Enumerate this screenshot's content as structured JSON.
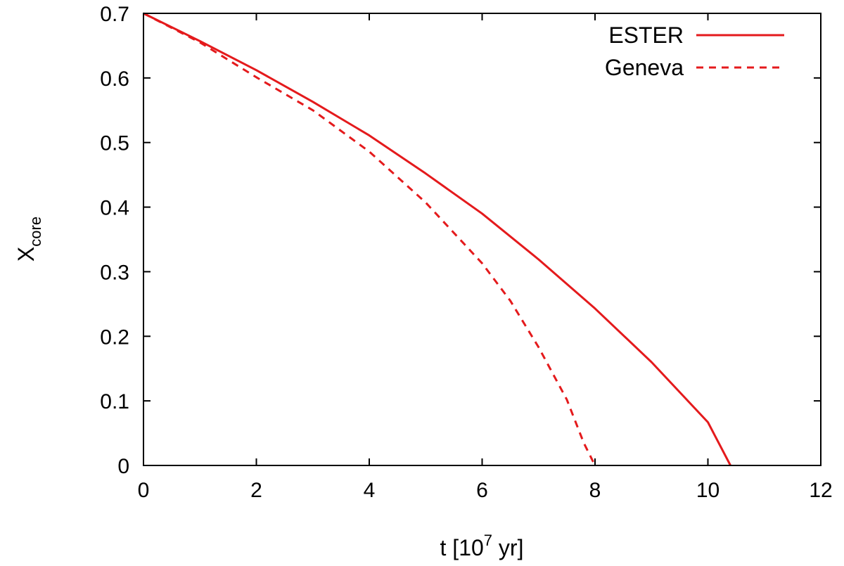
{
  "chart_data": {
    "type": "line",
    "title": "",
    "xlabel": {
      "main": "t [10",
      "superscript": "7",
      "tail": " yr]"
    },
    "ylabel": {
      "main": "X",
      "subscript": "core"
    },
    "xlim": [
      0,
      12
    ],
    "ylim": [
      0,
      0.7
    ],
    "xticks": [
      0,
      2,
      4,
      6,
      8,
      10,
      12
    ],
    "yticks": [
      0,
      0.1,
      0.2,
      0.3,
      0.4,
      0.5,
      0.6,
      0.7
    ],
    "xtick_labels": [
      "0",
      "2",
      "4",
      "6",
      "8",
      "10",
      "12"
    ],
    "ytick_labels": [
      "0",
      "0.1",
      "0.2",
      "0.3",
      "0.4",
      "0.5",
      "0.6",
      "0.7"
    ],
    "grid": false,
    "legend_position": "top-right",
    "series_color": "#e41a1c",
    "series": [
      {
        "name": "ESTER",
        "style": "solid",
        "x": [
          0,
          1,
          2,
          3,
          4,
          5,
          6,
          7,
          8,
          9,
          10,
          10.4
        ],
        "y": [
          0.7,
          0.657,
          0.612,
          0.563,
          0.511,
          0.452,
          0.39,
          0.319,
          0.243,
          0.16,
          0.067,
          0.0
        ]
      },
      {
        "name": "Geneva",
        "style": "dashed",
        "x": [
          0,
          1,
          2,
          3,
          4,
          5,
          6,
          6.5,
          7,
          7.5,
          7.8,
          8.0
        ],
        "y": [
          0.7,
          0.655,
          0.601,
          0.55,
          0.486,
          0.407,
          0.313,
          0.255,
          0.183,
          0.102,
          0.035,
          0.0
        ]
      }
    ]
  }
}
